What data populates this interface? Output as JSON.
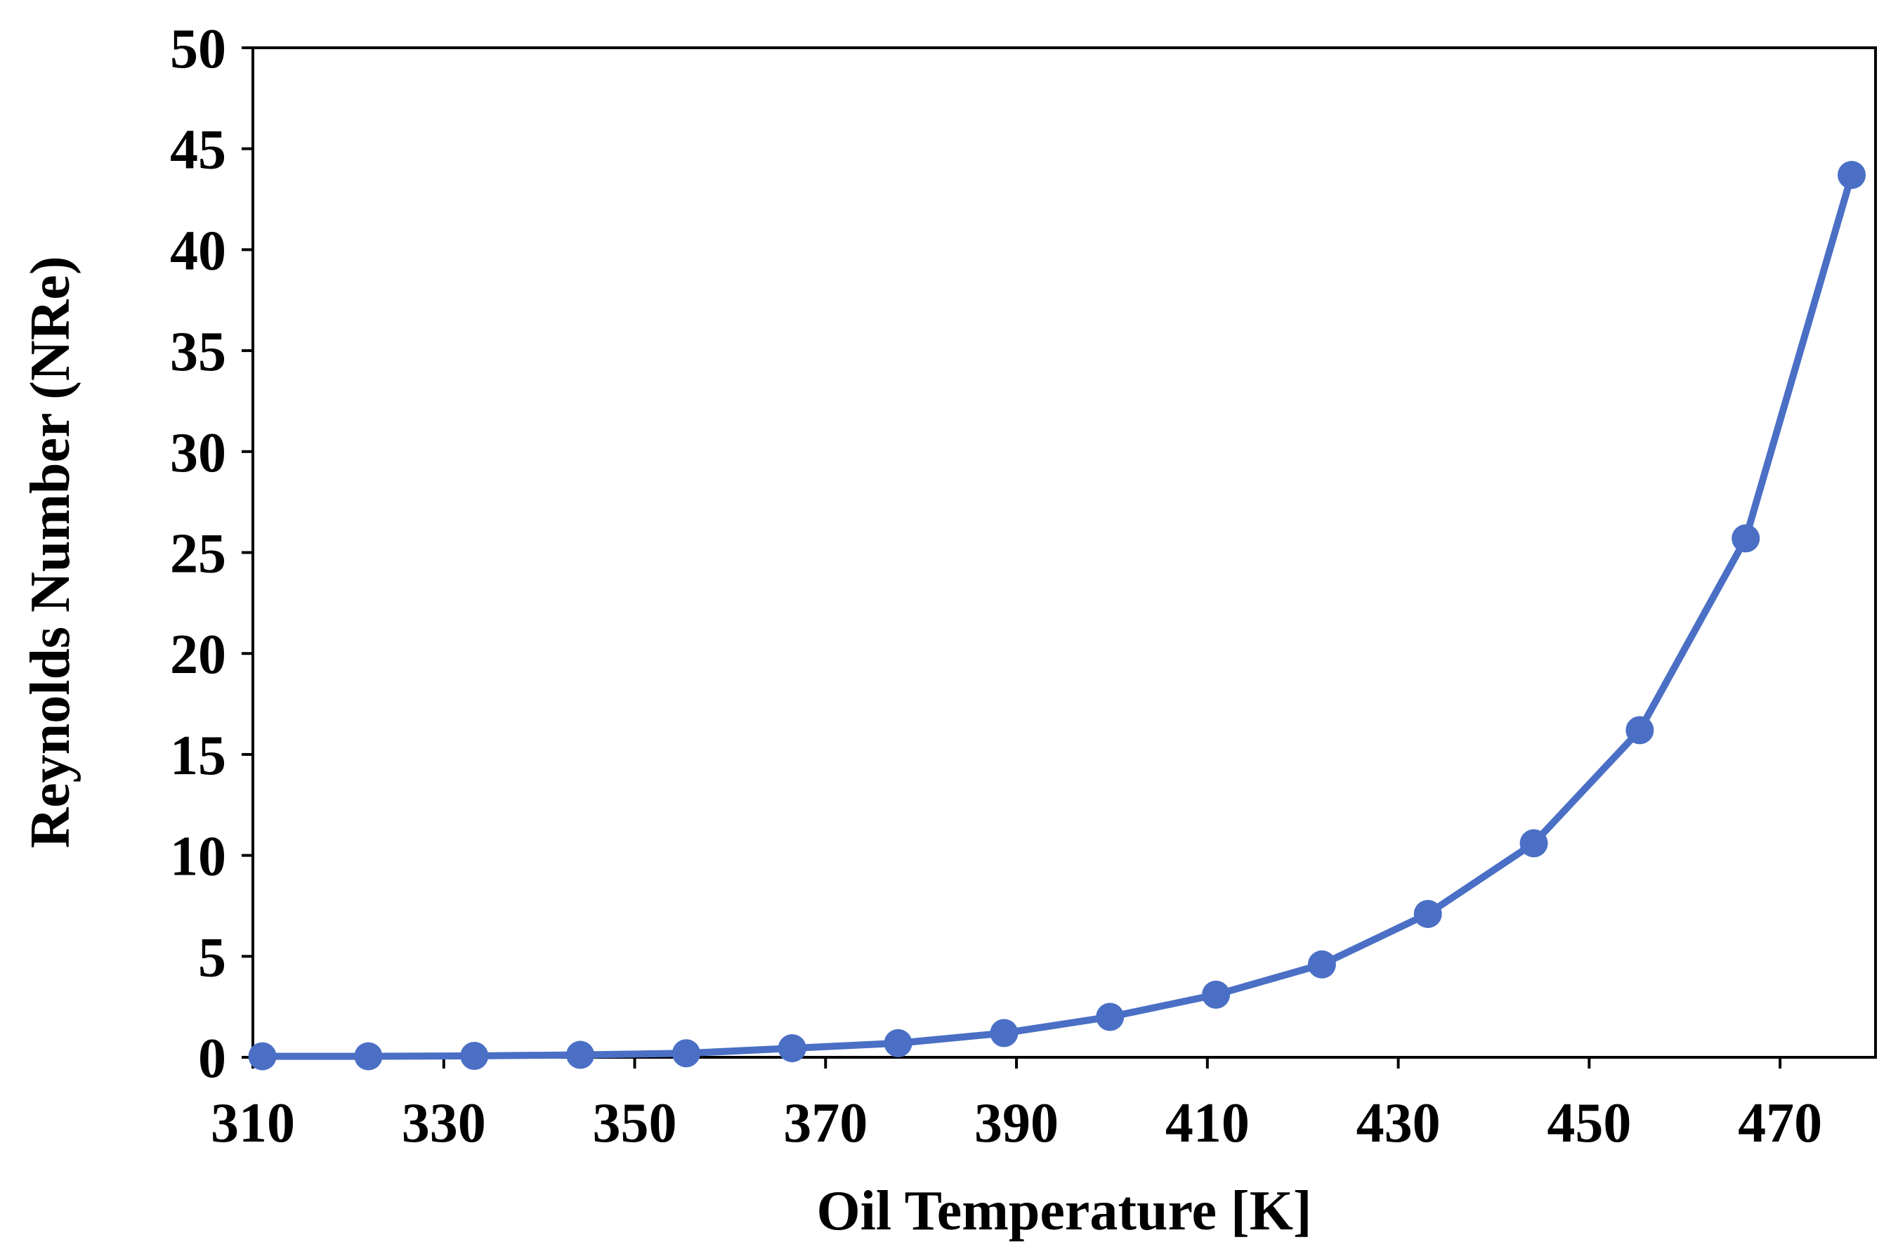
{
  "chart_data": {
    "type": "line",
    "title": "",
    "xlabel": "Oil Temperature [K]",
    "ylabel": "Reynolds Number (NRe)",
    "xlim": [
      310,
      480
    ],
    "ylim": [
      0,
      50
    ],
    "xticks": [
      310,
      330,
      350,
      370,
      390,
      410,
      430,
      450,
      470
    ],
    "yticks": [
      0,
      5,
      10,
      15,
      20,
      25,
      30,
      35,
      40,
      45,
      50
    ],
    "grid": false,
    "legend": "none",
    "series": [
      {
        "name": "Reynolds Number",
        "color": "#4A6FC5",
        "marker": "circle",
        "x": [
          311.0,
          322.1,
          333.2,
          344.3,
          355.4,
          366.5,
          377.6,
          388.7,
          399.8,
          410.9,
          422.0,
          433.1,
          444.2,
          455.3,
          466.4,
          477.5
        ],
        "y": [
          0.05,
          0.05,
          0.07,
          0.12,
          0.2,
          0.45,
          0.7,
          1.2,
          2.0,
          3.1,
          4.6,
          7.1,
          10.6,
          16.2,
          25.7,
          43.7
        ]
      }
    ]
  }
}
